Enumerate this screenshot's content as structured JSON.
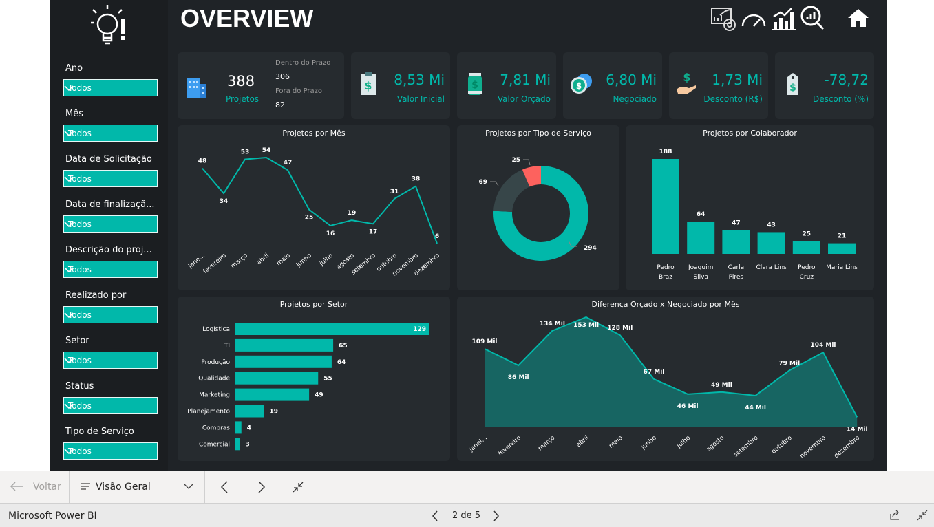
{
  "header": {
    "title": "OVERVIEW",
    "icons": [
      "report-analysis-icon",
      "gauge-icon",
      "growth-chart-icon",
      "search-chart-icon",
      "home-icon"
    ]
  },
  "filters": [
    {
      "label": "Ano",
      "value": "Todos"
    },
    {
      "label": "Mês",
      "value": "Todos"
    },
    {
      "label": "Data de Solicitação",
      "value": "Todos"
    },
    {
      "label": "Data de finalizaçã...",
      "value": "Todos"
    },
    {
      "label": "Descrição do proj...",
      "value": "Todos"
    },
    {
      "label": "Realizado por",
      "value": "Todos"
    },
    {
      "label": "Setor",
      "value": "Todos"
    },
    {
      "label": "Status",
      "value": "Todos"
    },
    {
      "label": "Tipo de Serviço",
      "value": "Todos"
    }
  ],
  "kpis": {
    "projetos": {
      "value": "388",
      "label": "Projetos",
      "in_label": "Dentro do Prazo",
      "in_value": "306",
      "out_label": "Fora do Prazo",
      "out_value": "82"
    },
    "cards": [
      {
        "value": "8,53 Mi",
        "label": "Valor Inicial",
        "icon": "clipboard-dollar-icon"
      },
      {
        "value": "7,81 Mi",
        "label": "Valor Orçado",
        "icon": "money-jar-icon"
      },
      {
        "value": "6,80 Mi",
        "label": "Negociado",
        "icon": "dollar-chat-icon"
      },
      {
        "value": "1,73 Mi",
        "label": "Desconto (R$)",
        "icon": "hand-dollar-icon"
      },
      {
        "value": "-78,72",
        "label": "Desconto (%)",
        "icon": "price-tag-icon"
      }
    ]
  },
  "colors": {
    "accent": "#01b8aa",
    "secondary": "#374649",
    "highlight": "#fd625e"
  },
  "chart_data": [
    {
      "type": "line",
      "title": "Projetos por Mês",
      "categories": [
        "jane...",
        "fevereiro",
        "março",
        "abril",
        "maio",
        "junho",
        "julho",
        "agosto",
        "setembro",
        "outubro",
        "novembro",
        "dezembro"
      ],
      "values": [
        48,
        34,
        53,
        54,
        47,
        25,
        16,
        19,
        17,
        31,
        38,
        6
      ],
      "labels": [
        "48",
        "34",
        "53",
        "54",
        "47",
        "25",
        "16",
        "19",
        "17",
        "31",
        "38",
        "6"
      ]
    },
    {
      "type": "pie",
      "title": "Projetos por Tipo de Serviço",
      "values": [
        294,
        69,
        25
      ],
      "labels": [
        "294",
        "69",
        "25"
      ],
      "colors": [
        "#01b8aa",
        "#374649",
        "#fd625e"
      ]
    },
    {
      "type": "bar",
      "title": "Projetos por Colaborador",
      "categories": [
        "Pedro Braz",
        "Joaquim Silva",
        "Carla Pires",
        "Clara Lins",
        "Pedro Cruz",
        "Maria Lins"
      ],
      "cat_lines": [
        [
          "Pedro",
          "Braz"
        ],
        [
          "Joaquim",
          "Silva"
        ],
        [
          "Carla",
          "Pires"
        ],
        [
          "Clara Lins"
        ],
        [
          "Pedro",
          "Cruz"
        ],
        [
          "Maria Lins"
        ]
      ],
      "values": [
        188,
        64,
        47,
        43,
        25,
        21
      ],
      "labels": [
        "188",
        "64",
        "47",
        "43",
        "25",
        "21"
      ]
    },
    {
      "type": "bar",
      "orientation": "horizontal",
      "title": "Projetos por Setor",
      "categories": [
        "Logística",
        "TI",
        "Produção",
        "Qualidade",
        "Marketing",
        "Planejamento",
        "Compras",
        "Comercial"
      ],
      "values": [
        129,
        65,
        64,
        55,
        49,
        19,
        4,
        3
      ],
      "labels": [
        "129",
        "65",
        "64",
        "55",
        "49",
        "19",
        "4",
        "3"
      ]
    },
    {
      "type": "area",
      "title": "Diferença Orçado x Negociado por Mês",
      "categories": [
        "janei...",
        "fevereiro",
        "março",
        "abril",
        "maio",
        "junho",
        "julho",
        "agosto",
        "setembro",
        "outubro",
        "novembro",
        "dezembro"
      ],
      "values": [
        109,
        86,
        134,
        153,
        128,
        67,
        46,
        49,
        44,
        79,
        104,
        14
      ],
      "unit": "Mil",
      "labels": [
        "109 Mil",
        "86 Mil",
        "134 Mil",
        "153 Mil",
        "128 Mil",
        "67 Mil",
        "46 Mil",
        "49 Mil",
        "44 Mil",
        "79 Mil",
        "104 Mil",
        "14 Mil"
      ]
    }
  ],
  "navbar": {
    "back": "Voltar",
    "page_select": "Visão Geral"
  },
  "status": {
    "app": "Microsoft Power BI",
    "page": "2 de 5"
  }
}
